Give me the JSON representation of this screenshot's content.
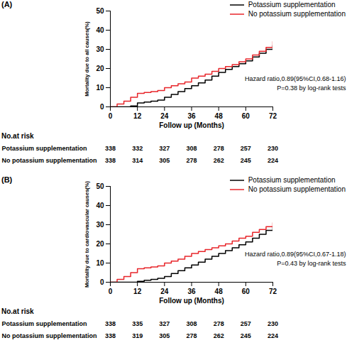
{
  "chart_data": [
    {
      "type": "step",
      "title": "(A)",
      "x_label": "Follow up (Months)",
      "y_label": "Mortality due to all causes(%)",
      "x": [
        0,
        3,
        6,
        9,
        12,
        15,
        18,
        21,
        24,
        27,
        30,
        33,
        36,
        39,
        42,
        45,
        48,
        51,
        54,
        57,
        60,
        63,
        66,
        69,
        72
      ],
      "series": [
        {
          "name": "Potassium supplementation",
          "color": "#000000",
          "values": [
            0,
            0,
            0,
            0.5,
            2,
            2.5,
            3,
            3.5,
            5,
            6.5,
            8,
            9.5,
            11,
            12.5,
            14,
            16,
            18,
            19.5,
            21,
            22.5,
            24,
            26,
            28,
            30,
            32
          ]
        },
        {
          "name": "No potassium supplementation",
          "color": "#e8262b",
          "values": [
            0,
            1.5,
            3,
            5,
            7,
            7.5,
            8,
            8.5,
            10,
            11,
            12,
            13,
            15,
            16,
            17,
            18.5,
            20,
            21,
            22,
            23.5,
            25,
            27,
            29,
            31,
            34
          ]
        }
      ],
      "xlim": [
        0,
        72
      ],
      "xticks": [
        0,
        12,
        24,
        36,
        48,
        60,
        72
      ],
      "ylim": [
        0,
        50
      ],
      "yticks": [
        0,
        10,
        20,
        30,
        40,
        50
      ],
      "legend": "top-right",
      "annotations": [
        "Hazard ratio,0.89(95%CI,0.68-1.16)",
        "P=0.38 by log-rank tests"
      ],
      "at_risk": {
        "title": "No.at risk",
        "x": [
          0,
          12,
          24,
          36,
          48,
          60,
          72
        ],
        "rows": [
          {
            "name": "Potassium supplementation",
            "values": [
              338,
              332,
              327,
              308,
              278,
              257,
              230
            ]
          },
          {
            "name": "No potassium supplementation",
            "values": [
              338,
              314,
              305,
              278,
              262,
              245,
              224
            ]
          }
        ]
      }
    },
    {
      "type": "step",
      "title": "(B)",
      "x_label": "Follow up (Months)",
      "y_label": "Mortality due to cardiovascular causes(%)",
      "x": [
        0,
        3,
        6,
        9,
        12,
        15,
        18,
        21,
        24,
        27,
        30,
        33,
        36,
        39,
        42,
        45,
        48,
        51,
        54,
        57,
        60,
        63,
        66,
        69,
        72
      ],
      "series": [
        {
          "name": "Potassium supplementation",
          "color": "#000000",
          "values": [
            0,
            0,
            0,
            0,
            0.5,
            1,
            1.5,
            2,
            3,
            4.5,
            6,
            7.5,
            9,
            10.5,
            12,
            13.5,
            15,
            16.5,
            18,
            19.5,
            21,
            23,
            25,
            27,
            29
          ]
        },
        {
          "name": "No potassium supplementation",
          "color": "#e8262b",
          "values": [
            0,
            1.5,
            3,
            5,
            7,
            7.5,
            8,
            8.5,
            10,
            11,
            12,
            13.5,
            15,
            16,
            17,
            18,
            19,
            20,
            21.5,
            23,
            24,
            26,
            27.5,
            29,
            31
          ]
        }
      ],
      "xlim": [
        0,
        72
      ],
      "xticks": [
        0,
        12,
        24,
        36,
        48,
        60,
        72
      ],
      "ylim": [
        0,
        50
      ],
      "yticks": [
        0,
        10,
        20,
        30,
        40,
        50
      ],
      "legend": "top-right",
      "annotations": [
        "Hazard ratio,0.89(95%CI,0.67-1.18)",
        "P=0.43 by log-rank tests"
      ],
      "at_risk": {
        "title": "No.at risk",
        "x": [
          0,
          12,
          24,
          36,
          48,
          60,
          72
        ],
        "rows": [
          {
            "name": "Potassium supplementation",
            "values": [
              338,
              335,
              327,
              308,
              278,
              257,
              230
            ]
          },
          {
            "name": "No potassium supplementation",
            "values": [
              338,
              319,
              305,
              278,
              262,
              245,
              224
            ]
          }
        ]
      }
    }
  ]
}
